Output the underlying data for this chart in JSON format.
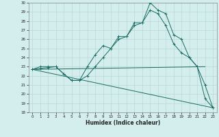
{
  "xlabel": "Humidex (Indice chaleur)",
  "bg_color": "#d4eeed",
  "grid_color": "#b8d8d5",
  "line_color": "#1a6b62",
  "xlim": [
    -0.5,
    23.5
  ],
  "ylim": [
    18,
    30
  ],
  "yticks": [
    18,
    19,
    20,
    21,
    22,
    23,
    24,
    25,
    26,
    27,
    28,
    29,
    30
  ],
  "xticks": [
    0,
    1,
    2,
    3,
    4,
    5,
    6,
    7,
    8,
    9,
    10,
    11,
    12,
    13,
    14,
    15,
    16,
    17,
    18,
    19,
    20,
    21,
    22,
    23
  ],
  "line1_x": [
    0,
    1,
    2,
    3,
    4,
    5,
    6,
    7,
    8,
    9,
    10,
    11,
    12,
    13,
    14,
    15,
    16,
    17,
    18,
    19,
    20,
    21,
    22,
    23
  ],
  "line1_y": [
    22.7,
    23.0,
    23.0,
    23.0,
    22.2,
    21.5,
    21.5,
    23.0,
    24.3,
    25.3,
    25.0,
    26.3,
    26.3,
    27.8,
    27.8,
    30.0,
    29.2,
    28.8,
    26.5,
    26.0,
    24.0,
    23.0,
    21.0,
    18.5
  ],
  "line2_x": [
    0,
    22
  ],
  "line2_y": [
    22.7,
    23.0
  ],
  "line3_x": [
    0,
    23
  ],
  "line3_y": [
    22.7,
    18.5
  ],
  "line4_x": [
    0,
    1,
    2,
    3,
    4,
    5,
    6,
    7,
    8,
    9,
    10,
    11,
    12,
    13,
    14,
    15,
    16,
    17,
    18,
    19,
    20,
    21,
    22,
    23
  ],
  "line4_y": [
    22.7,
    22.8,
    22.9,
    23.0,
    22.2,
    21.5,
    21.5,
    22.0,
    23.0,
    24.0,
    25.0,
    26.0,
    26.3,
    27.5,
    27.8,
    29.2,
    28.8,
    27.5,
    25.5,
    24.5,
    24.0,
    23.0,
    19.5,
    18.5
  ]
}
